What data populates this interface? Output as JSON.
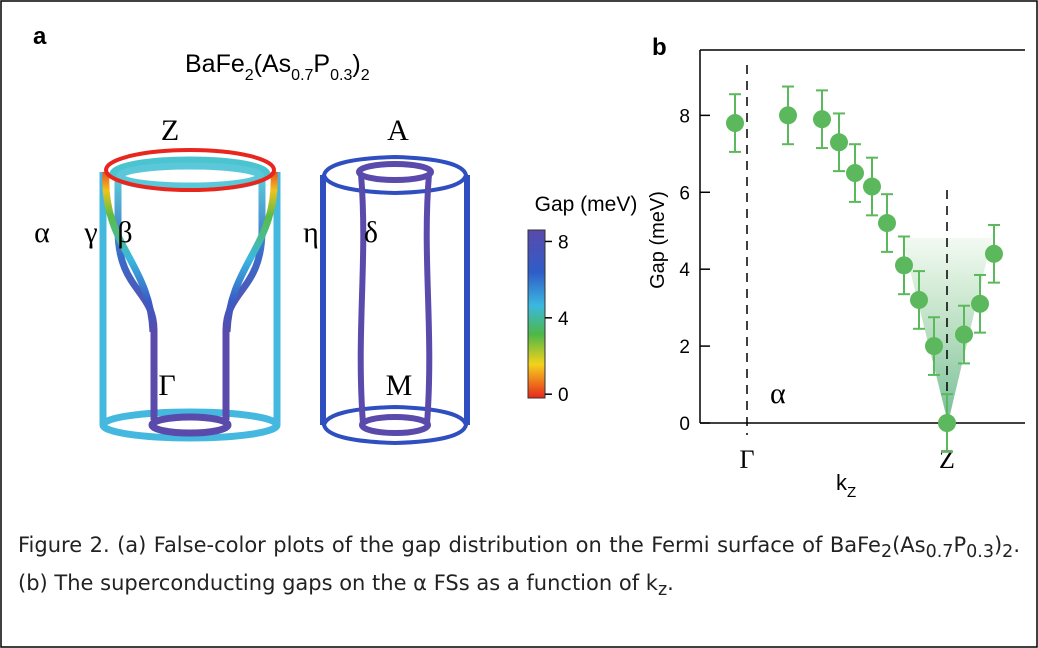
{
  "panel_a": {
    "label": "a",
    "formula": [
      "BaFe",
      "2",
      "(As",
      "0.7",
      "P",
      "0.3",
      ")",
      "2"
    ],
    "labels": [
      "Z",
      "A",
      "α",
      "γ",
      "β",
      "η",
      "δ",
      "Γ",
      "M"
    ],
    "colorbar": {
      "title": "Gap (meV)",
      "lim": [
        -0.2,
        8.6
      ],
      "ticks": [
        0,
        4,
        8
      ]
    }
  },
  "chart_data": {
    "type": "scatter",
    "label": "b",
    "x_label": [
      "k",
      "Z"
    ],
    "y_label": "Gap (meV)",
    "annotation": "α",
    "x": [
      -0.06,
      0.205,
      0.375,
      0.46,
      0.54,
      0.625,
      0.7,
      0.785,
      0.86,
      0.935,
      1.0,
      1.085,
      1.165,
      1.235
    ],
    "values": [
      7.8,
      8.0,
      7.9,
      7.3,
      6.5,
      6.15,
      5.2,
      4.1,
      3.2,
      2.0,
      0.0,
      2.3,
      3.1,
      4.4
    ],
    "errors": [
      0.75,
      0.75,
      0.75,
      0.75,
      0.75,
      0.75,
      0.75,
      0.75,
      0.75,
      0.75,
      0.75,
      0.75,
      0.75,
      0.75
    ],
    "color": "#5cb85c",
    "xlim": [
      -0.235,
      1.39
    ],
    "ylim": [
      0,
      9.7
    ],
    "xticks": [
      {
        "value": 0,
        "label": "Γ"
      },
      {
        "value": 1,
        "label": "Z"
      }
    ],
    "yticks": [
      0,
      2,
      4,
      6,
      8
    ]
  },
  "caption": [
    "Figure 2. (a) False-color plots of the gap distribution on the Fermi surface of BaFe",
    "2",
    "(As",
    "0.7",
    "P",
    "0.3",
    ")",
    "2",
    ". (b) The superconducting gaps on the α FSs as a function of k",
    "z",
    "."
  ]
}
